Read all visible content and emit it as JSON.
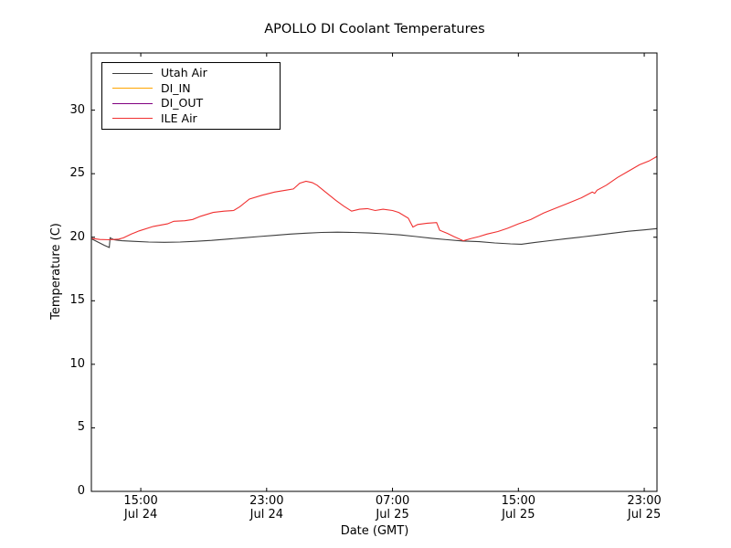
{
  "title": "APOLLO DI Coolant Temperatures",
  "xlabel": "Date (GMT)",
  "ylabel": "Temperature (C)",
  "legend": [
    {
      "label": "Utah Air",
      "color": "#3c3c3c"
    },
    {
      "label": "DI_IN",
      "color": "#ffa500"
    },
    {
      "label": "DI_OUT",
      "color": "#800080"
    },
    {
      "label": "ILE Air",
      "color": "#f03030"
    }
  ],
  "chart_data": {
    "type": "line",
    "title": "APOLLO DI Coolant Temperatures",
    "xlabel": "Date (GMT)",
    "ylabel": "Temperature (C)",
    "grid": false,
    "legend_position": "upper left",
    "x_unit": "hours since Jul 24 00:00 GMT",
    "xlim": [
      11.86,
      47.81
    ],
    "ylim": [
      0,
      34.5
    ],
    "y_ticks": [
      0,
      5,
      10,
      15,
      20,
      25,
      30
    ],
    "x_ticks": [
      {
        "t": 15,
        "time": "15:00",
        "date": "Jul 24"
      },
      {
        "t": 23,
        "time": "23:00",
        "date": "Jul 24"
      },
      {
        "t": 31,
        "time": "07:00",
        "date": "Jul 25"
      },
      {
        "t": 39,
        "time": "15:00",
        "date": "Jul 25"
      },
      {
        "t": 47,
        "time": "23:00",
        "date": "Jul 25"
      }
    ],
    "series": [
      {
        "name": "Utah Air",
        "color": "#3c3c3c",
        "points": [
          [
            11.9,
            19.85
          ],
          [
            12.3,
            19.6
          ],
          [
            12.7,
            19.35
          ],
          [
            13.0,
            19.2
          ],
          [
            13.05,
            19.95
          ],
          [
            13.3,
            19.8
          ],
          [
            13.8,
            19.72
          ],
          [
            14.5,
            19.68
          ],
          [
            15.5,
            19.62
          ],
          [
            16.5,
            19.6
          ],
          [
            17.5,
            19.62
          ],
          [
            18.5,
            19.68
          ],
          [
            19.5,
            19.75
          ],
          [
            20.5,
            19.85
          ],
          [
            21.5,
            19.95
          ],
          [
            22.5,
            20.05
          ],
          [
            23.5,
            20.15
          ],
          [
            24.5,
            20.25
          ],
          [
            25.5,
            20.32
          ],
          [
            26.5,
            20.38
          ],
          [
            27.5,
            20.4
          ],
          [
            28.5,
            20.38
          ],
          [
            29.5,
            20.33
          ],
          [
            30.5,
            20.27
          ],
          [
            31.5,
            20.18
          ],
          [
            32.5,
            20.05
          ],
          [
            33.5,
            19.92
          ],
          [
            34.5,
            19.8
          ],
          [
            35.5,
            19.7
          ],
          [
            36.5,
            19.65
          ],
          [
            37.5,
            19.55
          ],
          [
            38.5,
            19.48
          ],
          [
            39.2,
            19.45
          ],
          [
            40.0,
            19.58
          ],
          [
            41.0,
            19.73
          ],
          [
            42.0,
            19.88
          ],
          [
            43.0,
            20.02
          ],
          [
            44.0,
            20.17
          ],
          [
            45.0,
            20.32
          ],
          [
            46.0,
            20.47
          ],
          [
            47.0,
            20.58
          ],
          [
            47.8,
            20.68
          ]
        ]
      },
      {
        "name": "DI_IN",
        "color": "#ffa500",
        "points": []
      },
      {
        "name": "DI_OUT",
        "color": "#800080",
        "points": []
      },
      {
        "name": "ILE Air",
        "color": "#f03030",
        "points": [
          [
            11.9,
            19.9
          ],
          [
            12.4,
            19.82
          ],
          [
            13.0,
            19.8
          ],
          [
            13.6,
            19.85
          ],
          [
            13.9,
            19.95
          ],
          [
            14.4,
            20.25
          ],
          [
            14.9,
            20.5
          ],
          [
            15.8,
            20.85
          ],
          [
            16.7,
            21.05
          ],
          [
            17.1,
            21.25
          ],
          [
            17.8,
            21.3
          ],
          [
            18.3,
            21.4
          ],
          [
            18.8,
            21.65
          ],
          [
            19.6,
            21.95
          ],
          [
            20.3,
            22.05
          ],
          [
            20.9,
            22.1
          ],
          [
            21.3,
            22.4
          ],
          [
            21.9,
            23.0
          ],
          [
            22.7,
            23.3
          ],
          [
            23.5,
            23.55
          ],
          [
            24.2,
            23.7
          ],
          [
            24.7,
            23.8
          ],
          [
            25.1,
            24.25
          ],
          [
            25.5,
            24.4
          ],
          [
            25.9,
            24.3
          ],
          [
            26.2,
            24.1
          ],
          [
            26.7,
            23.6
          ],
          [
            27.4,
            22.9
          ],
          [
            27.9,
            22.45
          ],
          [
            28.4,
            22.05
          ],
          [
            28.9,
            22.2
          ],
          [
            29.4,
            22.25
          ],
          [
            29.9,
            22.1
          ],
          [
            30.4,
            22.2
          ],
          [
            31.0,
            22.1
          ],
          [
            31.4,
            21.95
          ],
          [
            32.0,
            21.5
          ],
          [
            32.3,
            20.8
          ],
          [
            32.6,
            21.0
          ],
          [
            33.2,
            21.1
          ],
          [
            33.8,
            21.15
          ],
          [
            34.0,
            20.55
          ],
          [
            34.5,
            20.3
          ],
          [
            34.9,
            20.05
          ],
          [
            35.5,
            19.72
          ],
          [
            36.0,
            19.9
          ],
          [
            36.5,
            20.05
          ],
          [
            37.0,
            20.25
          ],
          [
            37.7,
            20.45
          ],
          [
            38.3,
            20.7
          ],
          [
            39.0,
            21.05
          ],
          [
            39.8,
            21.4
          ],
          [
            40.6,
            21.9
          ],
          [
            41.4,
            22.3
          ],
          [
            42.2,
            22.7
          ],
          [
            43.0,
            23.1
          ],
          [
            43.7,
            23.55
          ],
          [
            43.85,
            23.45
          ],
          [
            44.0,
            23.7
          ],
          [
            44.6,
            24.1
          ],
          [
            45.3,
            24.7
          ],
          [
            46.0,
            25.2
          ],
          [
            46.7,
            25.7
          ],
          [
            47.3,
            26.0
          ],
          [
            47.8,
            26.35
          ]
        ]
      }
    ]
  }
}
